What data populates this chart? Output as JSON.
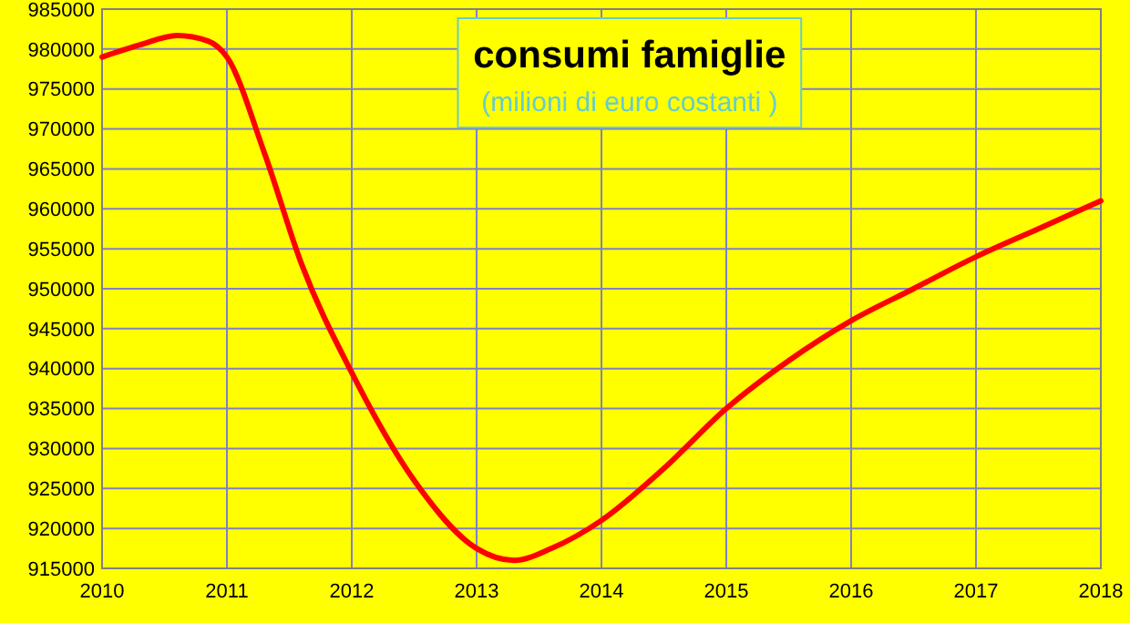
{
  "chart_data": {
    "type": "line",
    "title": "consumi famiglie",
    "subtitle": "(milioni di euro costanti )",
    "series": [
      {
        "color": "#ff0000",
        "x": [
          2010,
          2010.3,
          2010.6,
          2010.85,
          2011,
          2011.3,
          2011.6,
          2012,
          2012.5,
          2013,
          2013.3,
          2013.6,
          2014,
          2014.5,
          2015,
          2015.5,
          2016,
          2016.5,
          2017,
          2017.5,
          2018
        ],
        "values": [
          979000,
          980500,
          981700,
          981000,
          979000,
          967000,
          953000,
          939500,
          926000,
          917500,
          916000,
          917500,
          921000,
          927500,
          935000,
          941000,
          946000,
          950000,
          954000,
          957500,
          961000
        ]
      }
    ],
    "xlim": [
      2010,
      2018
    ],
    "xticks": [
      2010,
      2011,
      2012,
      2013,
      2014,
      2015,
      2016,
      2017,
      2018
    ],
    "ylim": [
      915000,
      985000
    ],
    "yticks": [
      915000,
      920000,
      925000,
      930000,
      935000,
      940000,
      945000,
      950000,
      955000,
      960000,
      965000,
      970000,
      975000,
      980000,
      985000
    ],
    "grid": true,
    "marker": "none",
    "line_style": "solid"
  }
}
